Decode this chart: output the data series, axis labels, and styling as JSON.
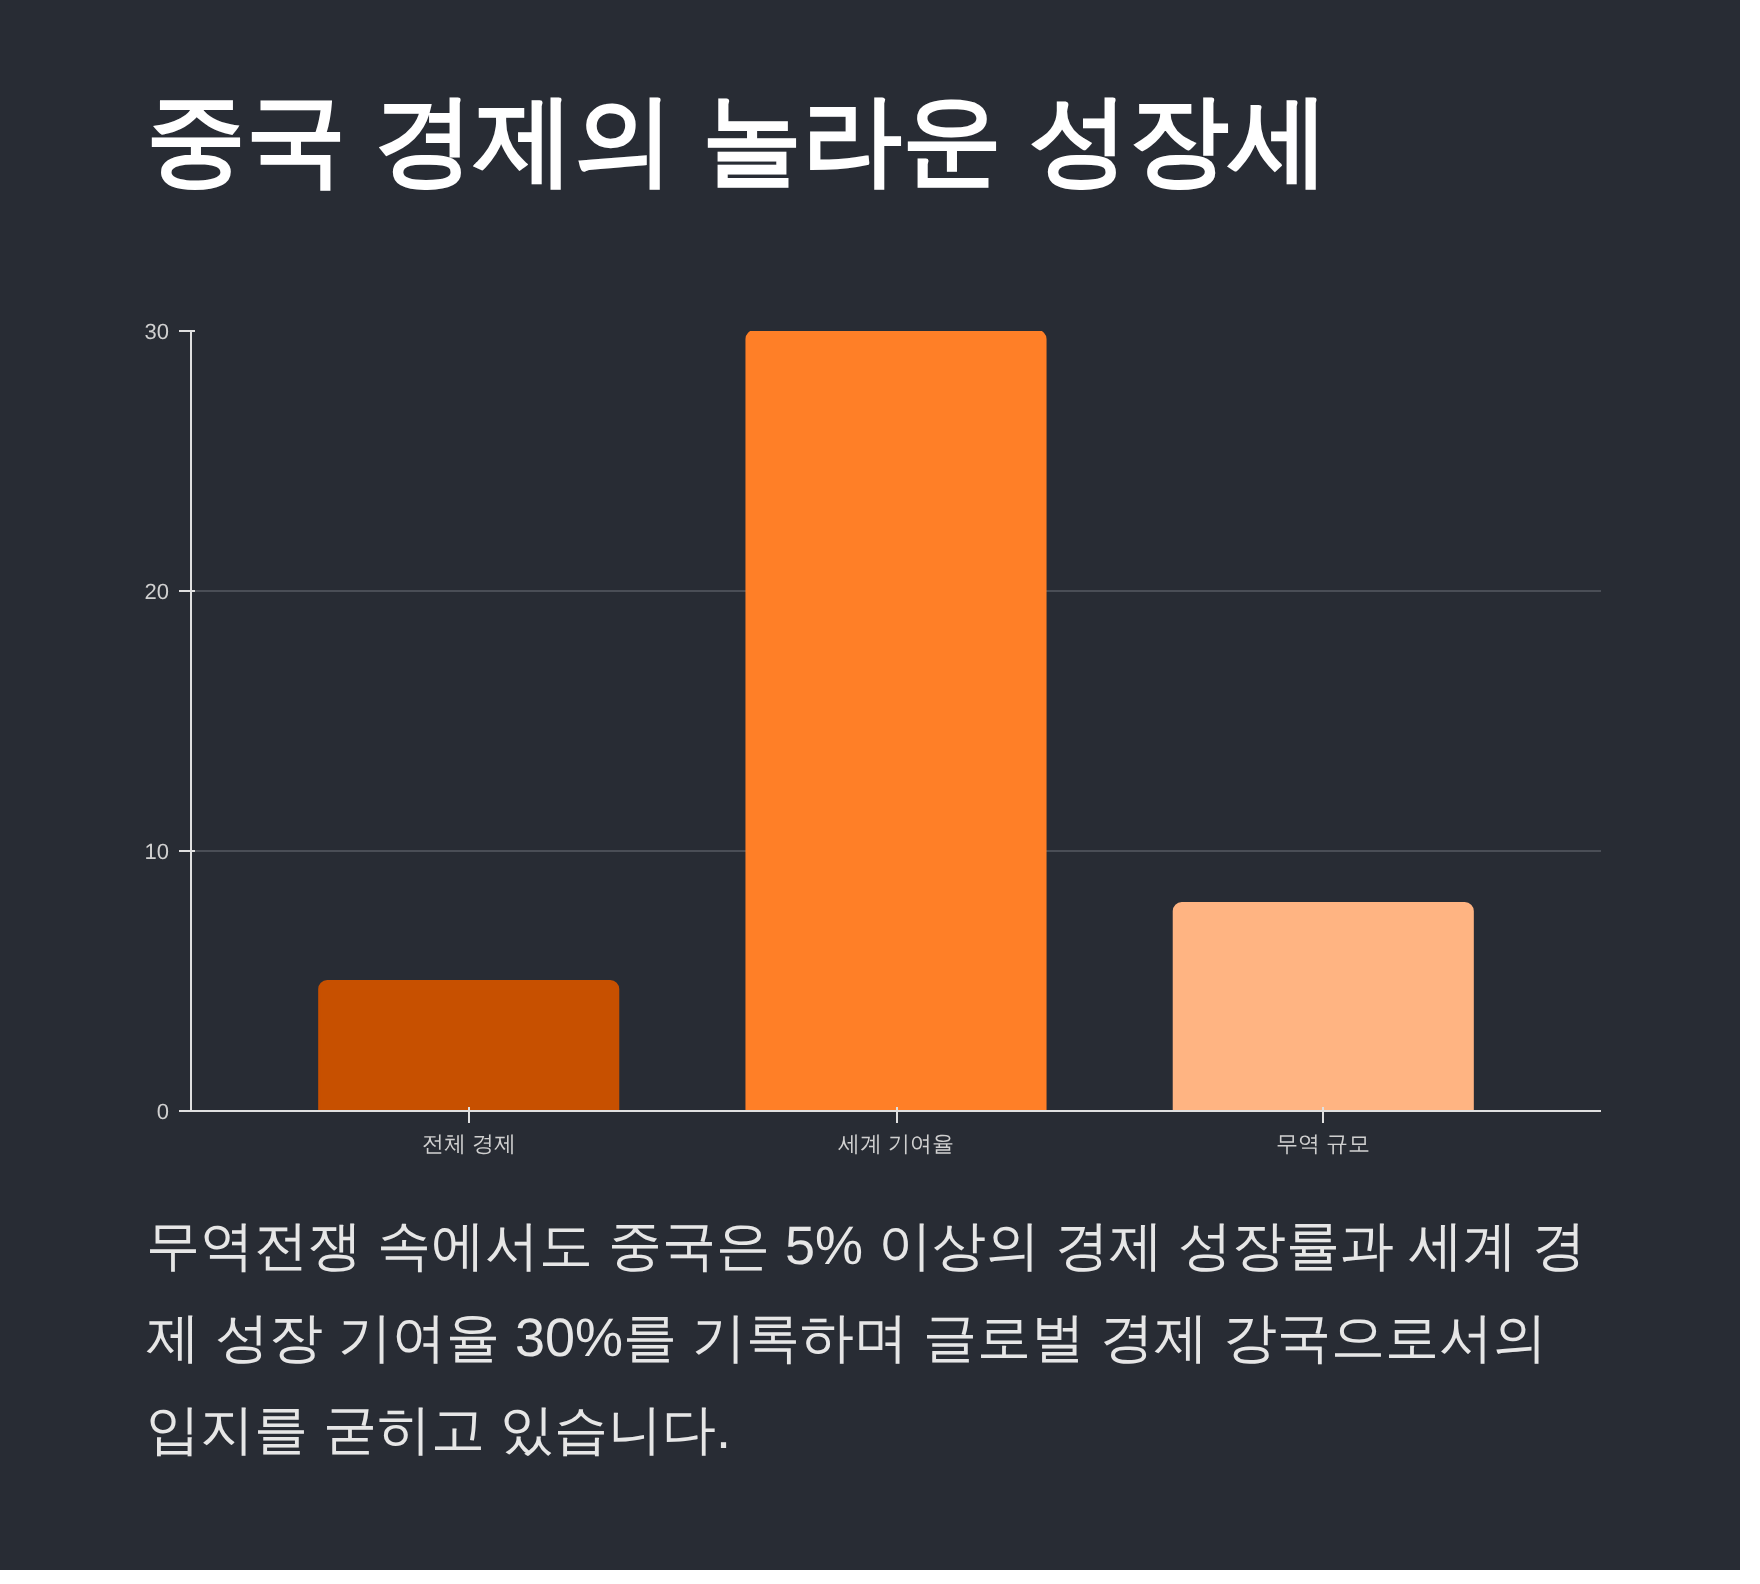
{
  "chart_data": {
    "type": "bar",
    "title": "중국 경제의 놀라운 성장세",
    "categories": [
      "전체 경제",
      "세계 기여율",
      "무역 규모"
    ],
    "values": [
      5,
      30,
      8
    ],
    "colors": [
      "#c75000",
      "#ff7f27",
      "#ffb482"
    ],
    "ylim": [
      0,
      30
    ],
    "yticks": [
      0,
      10,
      20,
      30
    ],
    "grid": "y",
    "annotations": [
      "무역전쟁 속에서도 중국은 5% 이상의 경제 성장률과 세계 경제 성장 기여율 30%를 기록하며 글로벌 경제 강국으로서의 입지를 굳히고 있습니다."
    ]
  }
}
